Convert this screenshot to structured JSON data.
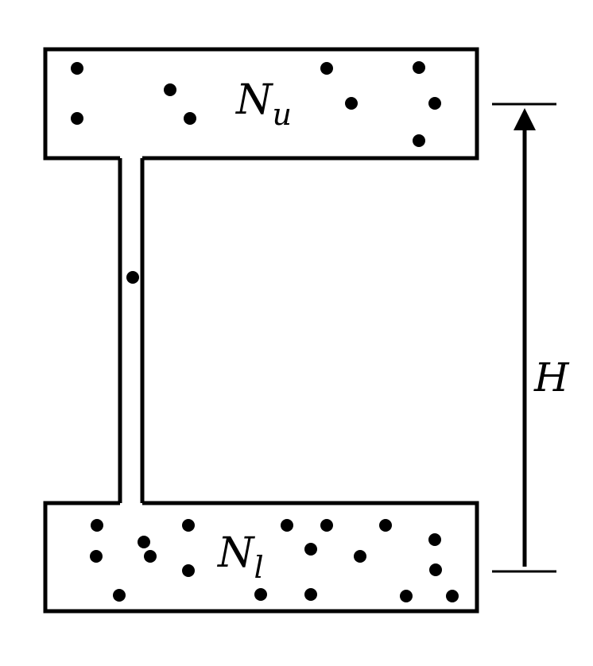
{
  "diagram": {
    "upper_symbol": "N",
    "upper_subscript": "u",
    "lower_symbol": "N",
    "lower_subscript": "l",
    "height_label": "H"
  },
  "colors": {
    "ink": "#000000",
    "background": "#ffffff"
  },
  "particles": {
    "upper_count": 9,
    "tube_count": 1,
    "lower_count": 20
  }
}
